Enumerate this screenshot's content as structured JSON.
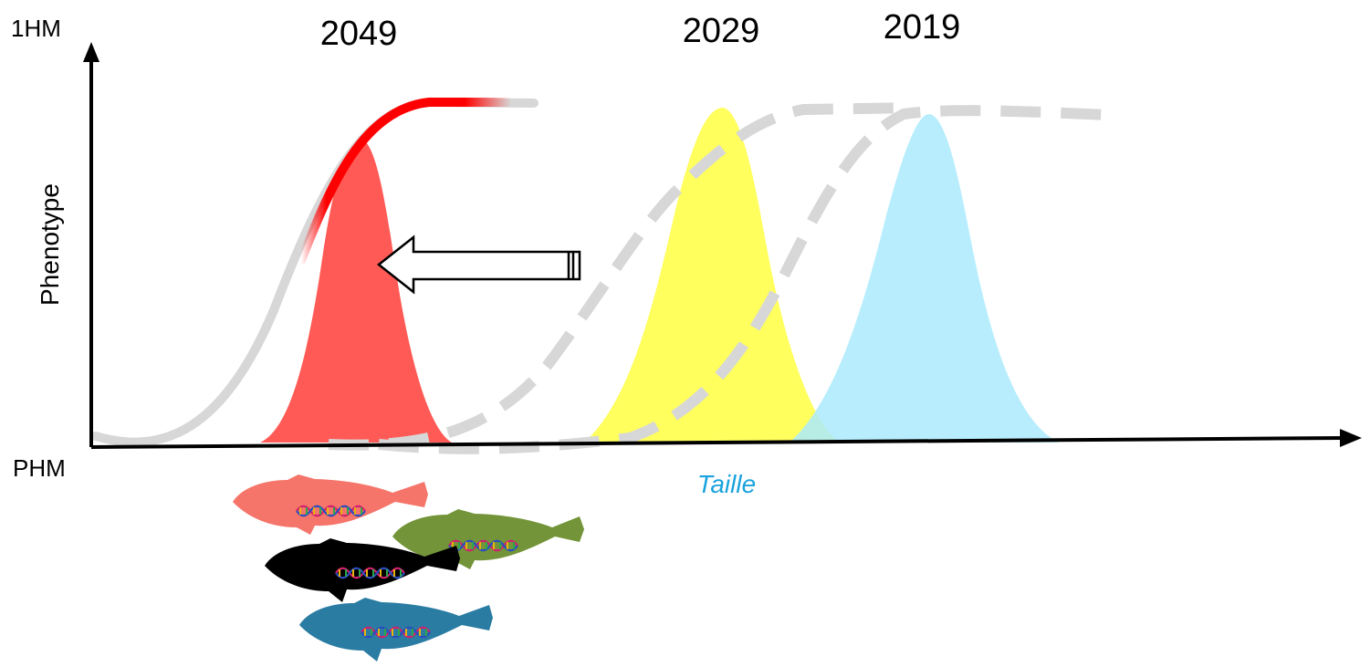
{
  "labels": {
    "top_left": "1HM",
    "bottom_left": "PHM",
    "y_axis": "Phenotype",
    "x_axis": "Taille",
    "year_2049": "2049",
    "year_2029": "2029",
    "year_2019": "2019"
  },
  "colors": {
    "dist_2049": "#ff5a55",
    "dist_2029": "#ffff55",
    "dist_2019": "#aaeafb",
    "curve_2049_highlight": "#ff0000",
    "curves_grey": "#d7d7d7",
    "x_axis_label": "#1aa3dd",
    "fish_salmon": "#f5756a",
    "fish_green": "#739438",
    "fish_black": "#000000",
    "fish_blue": "#2a7ca3"
  },
  "icons": [
    "left-arrow-icon",
    "fish-icon",
    "dna-icon"
  ]
}
